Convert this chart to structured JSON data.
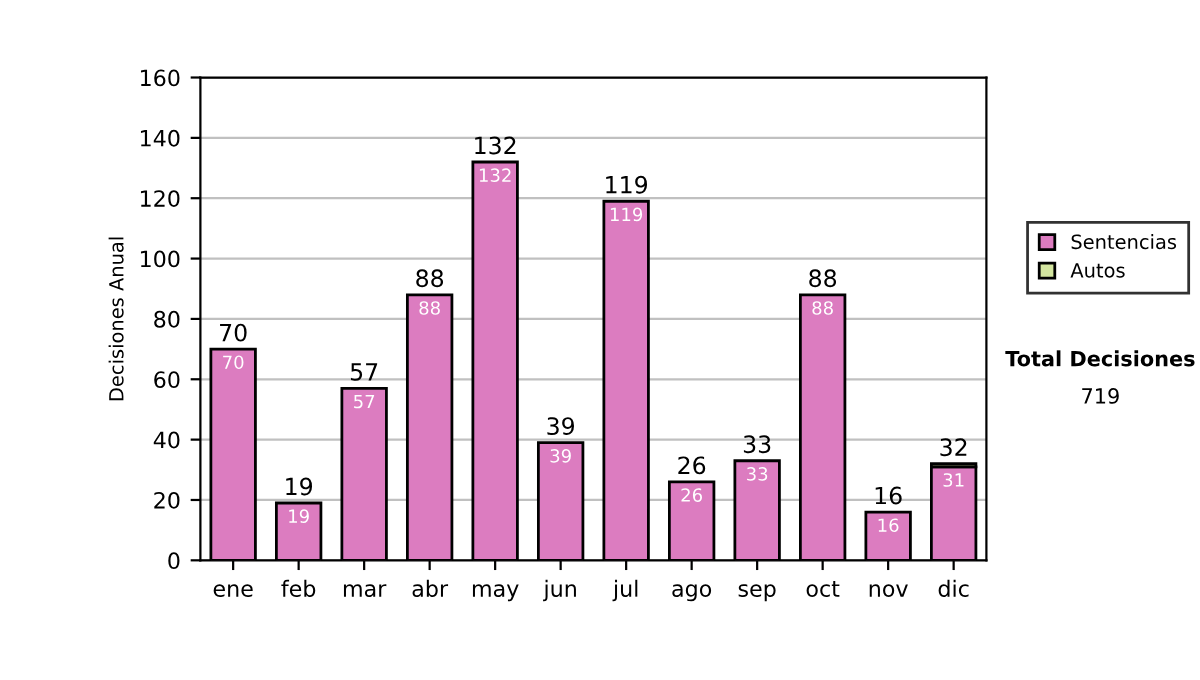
{
  "chart_data": {
    "type": "bar",
    "stacked": true,
    "ylabel": "Decisiones Anual",
    "categories": [
      "ene",
      "feb",
      "mar",
      "abr",
      "may",
      "jun",
      "jul",
      "ago",
      "sep",
      "oct",
      "nov",
      "dic"
    ],
    "series": [
      {
        "name": "Sentencias",
        "color": "#dc7cc0",
        "values": [
          70,
          19,
          57,
          88,
          132,
          39,
          119,
          26,
          33,
          88,
          16,
          31
        ],
        "value_labels": [
          "70",
          "19",
          "57",
          "88",
          "132",
          "39",
          "119",
          "26",
          "33",
          "88",
          "16",
          "31"
        ]
      },
      {
        "name": "Autos",
        "color": "#d4e6a0",
        "values": [
          0,
          0,
          0,
          0,
          0,
          0,
          0,
          0,
          0,
          0,
          0,
          1
        ]
      }
    ],
    "totals": [
      "70",
      "19",
      "57",
      "88",
      "132",
      "39",
      "119",
      "26",
      "33",
      "88",
      "16",
      "32"
    ],
    "ylim": [
      0,
      160
    ],
    "yticks": [
      0,
      20,
      40,
      60,
      80,
      100,
      120,
      140,
      160
    ],
    "grid": "y",
    "legend": "right",
    "annotations": [
      "Total Decisiones",
      "719"
    ]
  }
}
